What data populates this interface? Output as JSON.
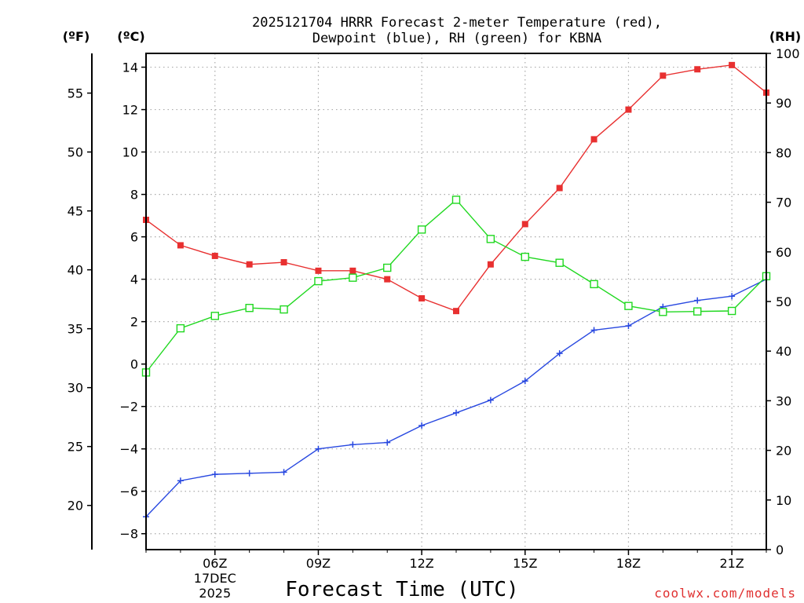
{
  "chart_data": {
    "type": "line",
    "title_lines": [
      "2025121704 HRRR Forecast 2-meter Temperature (red),",
      "Dewpoint (blue), RH (green) for KBNA"
    ],
    "unit_labels": {
      "fahrenheit": "(ºF)",
      "celsius": "(ºC)",
      "rh": "(RH)"
    },
    "xlabel": "Forecast Time (UTC)",
    "credit": "coolwx.com/models",
    "x": [
      4,
      5,
      6,
      7,
      8,
      9,
      10,
      11,
      12,
      13,
      14,
      15,
      16,
      17,
      18,
      19,
      20,
      21,
      22
    ],
    "xlim": [
      4,
      22
    ],
    "x_ticks": [
      {
        "x": 6,
        "label": "06Z",
        "sub": [
          "17DEC",
          "2025"
        ]
      },
      {
        "x": 9,
        "label": "09Z"
      },
      {
        "x": 12,
        "label": "12Z"
      },
      {
        "x": 15,
        "label": "15Z"
      },
      {
        "x": 18,
        "label": "18Z"
      },
      {
        "x": 21,
        "label": "21Z"
      }
    ],
    "celsius_axis": {
      "ylim": [
        -8.75,
        14.65
      ],
      "ticks": [
        -8,
        -6,
        -4,
        -2,
        0,
        2,
        4,
        6,
        8,
        10,
        12,
        14
      ]
    },
    "fahrenheit_axis": {
      "ticks": [
        20,
        25,
        30,
        35,
        40,
        45,
        50,
        55
      ]
    },
    "rh_axis": {
      "ylim": [
        0,
        100
      ],
      "ticks": [
        0,
        10,
        20,
        30,
        40,
        50,
        60,
        70,
        80,
        90,
        100
      ]
    },
    "series": [
      {
        "name": "Temperature",
        "axis": "celsius",
        "color": "#e83030",
        "marker": "filled-square",
        "values": [
          6.8,
          5.6,
          5.1,
          4.7,
          4.8,
          4.4,
          4.4,
          4.0,
          3.1,
          2.5,
          4.7,
          6.6,
          8.3,
          10.6,
          12.0,
          13.6,
          13.9,
          14.1,
          12.8
        ]
      },
      {
        "name": "Dewpoint",
        "axis": "celsius",
        "color": "#2848e0",
        "marker": "plus",
        "values": [
          -7.2,
          -5.5,
          -5.2,
          -5.15,
          -5.1,
          -4.0,
          -3.8,
          -3.7,
          -2.9,
          -2.3,
          -1.7,
          -0.8,
          0.5,
          1.6,
          1.8,
          2.7,
          3.0,
          3.2,
          4.0
        ]
      },
      {
        "name": "RH",
        "axis": "rh",
        "color": "#20d820",
        "marker": "open-square",
        "values": [
          35.7,
          44.6,
          47.1,
          48.7,
          48.4,
          54.1,
          54.8,
          56.8,
          64.5,
          70.5,
          62.6,
          59.0,
          57.8,
          53.5,
          49.1,
          47.9,
          48.0,
          48.1,
          55.1
        ]
      }
    ]
  }
}
